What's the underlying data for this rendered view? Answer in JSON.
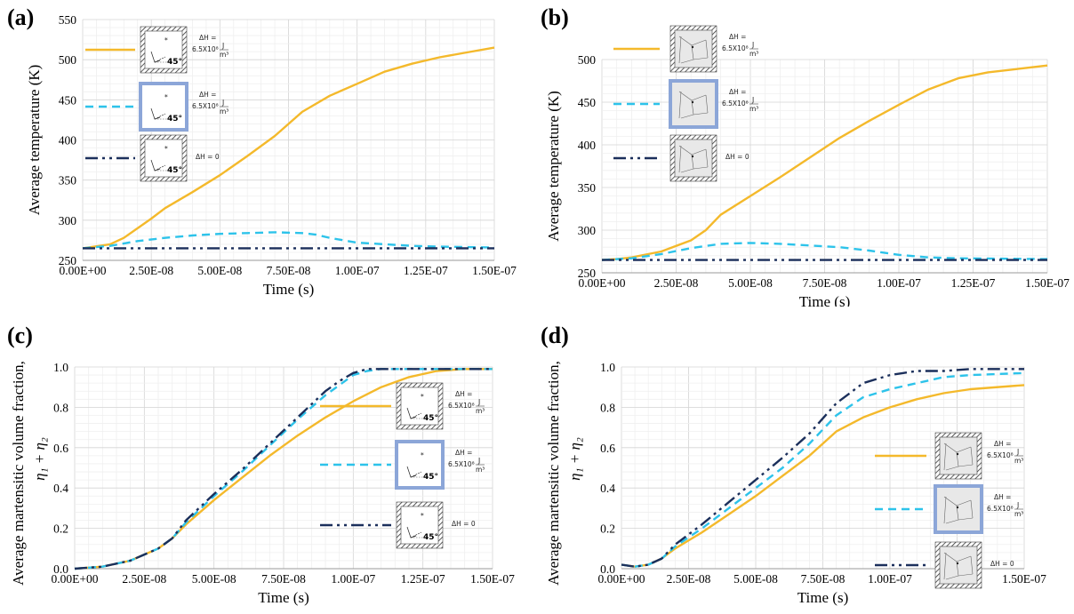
{
  "colors": {
    "yellow": "#F4B92B",
    "cyan": "#2DC3EA",
    "navy": "#1B2F5B",
    "grid": "#DDDDDD",
    "highlight_frame": "#8CA6D8",
    "hatch": "#333333"
  },
  "legend_labels": {
    "dh_prefix": "ΔH =",
    "dh_value": "6.5X10⁸",
    "dh_unit_num": "J",
    "dh_unit_den": "m³",
    "dh_zero": "ΔH = 0",
    "angle": "45°"
  },
  "icons": [
    "single-crystal-45deg-hatched-icon",
    "single-crystal-45deg-framed-icon",
    "polycrystal-hatched-icon",
    "polycrystal-framed-icon"
  ],
  "chart_data": [
    {
      "panel_label": "(a)",
      "type": "line",
      "xlabel": "Time (s)",
      "ylabel": "Average temperature (K)",
      "xlim": [
        0,
        1.5e-07
      ],
      "ylim": [
        250,
        550
      ],
      "xticks": [
        0,
        2.5e-08,
        5e-08,
        7.5e-08,
        1e-07,
        1.25e-07,
        1.5e-07
      ],
      "xtick_labels": [
        "0.00E+00",
        "2.50E-08",
        "5.00E-08",
        "7.50E-08",
        "1.00E-07",
        "1.25E-07",
        "1.50E-07"
      ],
      "yticks": [
        250,
        300,
        350,
        400,
        450,
        500,
        550
      ],
      "ytick_labels": [
        "250",
        "300",
        "350",
        "400",
        "450",
        "500",
        "550"
      ],
      "grid": true,
      "legend_position": "top-left",
      "series": [
        {
          "color_key": "yellow",
          "dash": "solid",
          "legend": {
            "icon": "single-crystal-45deg-hatched-icon",
            "text": "dh"
          },
          "x": [
            0,
            1e-08,
            1.5e-08,
            2e-08,
            2.5e-08,
            3e-08,
            4e-08,
            5e-08,
            6e-08,
            7e-08,
            8e-08,
            9e-08,
            1e-07,
            1.1e-07,
            1.2e-07,
            1.3e-07,
            1.4e-07,
            1.5e-07
          ],
          "y": [
            265,
            270,
            278,
            290,
            302,
            315,
            335,
            356,
            380,
            405,
            435,
            455,
            470,
            485,
            495,
            503,
            509,
            515
          ]
        },
        {
          "color_key": "cyan",
          "dash": "dashed",
          "legend": {
            "icon": "single-crystal-45deg-framed-icon",
            "text": "dh"
          },
          "x": [
            0,
            1e-08,
            2e-08,
            3e-08,
            4e-08,
            5e-08,
            6e-08,
            7e-08,
            8e-08,
            8.5e-08,
            9e-08,
            1e-07,
            1.1e-07,
            1.2e-07,
            1.3e-07,
            1.5e-07
          ],
          "y": [
            265,
            268,
            274,
            278,
            281,
            283,
            284,
            285,
            284,
            282,
            278,
            272,
            270,
            268,
            267,
            266
          ]
        },
        {
          "color_key": "navy",
          "dash": "dashdot",
          "legend": {
            "icon": "single-crystal-45deg-hatched-icon",
            "text": "zero"
          },
          "x": [
            0,
            1.5e-07
          ],
          "y": [
            265,
            265
          ]
        }
      ]
    },
    {
      "panel_label": "(b)",
      "type": "line",
      "xlabel": "Time (s)",
      "ylabel": "Average temperature (K)",
      "xlim": [
        0,
        1.5e-07
      ],
      "ylim": [
        250,
        500
      ],
      "xticks": [
        0,
        2.5e-08,
        5e-08,
        7.5e-08,
        1e-07,
        1.25e-07,
        1.5e-07
      ],
      "xtick_labels": [
        "0.00E+00",
        "2.50E-08",
        "5.00E-08",
        "7.50E-08",
        "1.00E-07",
        "1.25E-07",
        "1.50E-07"
      ],
      "yticks": [
        250,
        300,
        350,
        400,
        450,
        500
      ],
      "ytick_labels": [
        "250",
        "300",
        "350",
        "400",
        "450",
        "500"
      ],
      "grid": true,
      "legend_position": "top-left",
      "series": [
        {
          "color_key": "yellow",
          "dash": "solid",
          "legend": {
            "icon": "polycrystal-hatched-icon",
            "text": "dh"
          },
          "x": [
            0,
            5e-09,
            1e-08,
            2e-08,
            3e-08,
            3.5e-08,
            4e-08,
            5e-08,
            6e-08,
            7e-08,
            8e-08,
            9e-08,
            1e-07,
            1.1e-07,
            1.2e-07,
            1.3e-07,
            1.4e-07,
            1.5e-07
          ],
          "y": [
            265,
            266,
            268,
            275,
            288,
            300,
            318,
            340,
            362,
            385,
            408,
            428,
            447,
            465,
            478,
            485,
            489,
            493
          ]
        },
        {
          "color_key": "cyan",
          "dash": "dashed",
          "legend": {
            "icon": "polycrystal-framed-icon",
            "text": "dh"
          },
          "x": [
            0,
            1e-08,
            2e-08,
            3e-08,
            4e-08,
            5e-08,
            6e-08,
            7e-08,
            8e-08,
            9e-08,
            1e-07,
            1.1e-07,
            1.2e-07,
            1.5e-07
          ],
          "y": [
            265,
            267,
            272,
            279,
            284,
            285,
            284,
            282,
            280,
            276,
            271,
            268,
            267,
            266
          ]
        },
        {
          "color_key": "navy",
          "dash": "dashdot",
          "legend": {
            "icon": "polycrystal-hatched-icon",
            "text": "zero"
          },
          "x": [
            0,
            1.5e-07
          ],
          "y": [
            265,
            265
          ]
        }
      ]
    },
    {
      "panel_label": "(c)",
      "type": "line",
      "xlabel": "Time (s)",
      "ylabel": "Average martensitic volume fraction,",
      "ylabel2": "η₁ + η₂",
      "xlim": [
        0,
        1.5e-07
      ],
      "ylim": [
        0,
        1
      ],
      "xticks": [
        0,
        2.5e-08,
        5e-08,
        7.5e-08,
        1e-07,
        1.25e-07,
        1.5e-07
      ],
      "xtick_labels": [
        "0.00E+00",
        "2.50E-08",
        "5.00E-08",
        "7.50E-08",
        "1.00E-07",
        "1.25E-07",
        "1.50E-07"
      ],
      "yticks": [
        0,
        0.2,
        0.4,
        0.6,
        0.8,
        1.0
      ],
      "ytick_labels": [
        "0.0",
        "0.2",
        "0.4",
        "0.6",
        "0.8",
        "1.0"
      ],
      "grid": true,
      "legend_position": "right",
      "series": [
        {
          "color_key": "yellow",
          "dash": "solid",
          "legend": {
            "icon": "single-crystal-45deg-hatched-icon",
            "text": "dh"
          },
          "x": [
            0,
            1e-08,
            2e-08,
            3e-08,
            3.5e-08,
            4e-08,
            5e-08,
            6e-08,
            7e-08,
            8e-08,
            9e-08,
            1e-07,
            1.1e-07,
            1.2e-07,
            1.3e-07,
            1.4e-07,
            1.5e-07
          ],
          "y": [
            0,
            0.01,
            0.04,
            0.1,
            0.15,
            0.22,
            0.34,
            0.45,
            0.56,
            0.66,
            0.75,
            0.83,
            0.9,
            0.95,
            0.98,
            0.99,
            0.99
          ]
        },
        {
          "color_key": "cyan",
          "dash": "dashed",
          "legend": {
            "icon": "single-crystal-45deg-framed-icon",
            "text": "dh"
          },
          "x": [
            0,
            1e-08,
            2e-08,
            3e-08,
            3.5e-08,
            4e-08,
            5e-08,
            6e-08,
            7e-08,
            8e-08,
            9e-08,
            9.5e-08,
            1e-07,
            1.05e-07,
            1.1e-07,
            1.2e-07,
            1.5e-07
          ],
          "y": [
            0,
            0.01,
            0.04,
            0.1,
            0.15,
            0.23,
            0.36,
            0.48,
            0.61,
            0.74,
            0.86,
            0.91,
            0.96,
            0.98,
            0.99,
            0.99,
            0.99
          ]
        },
        {
          "color_key": "navy",
          "dash": "dashdot",
          "legend": {
            "icon": "single-crystal-45deg-hatched-icon",
            "text": "zero"
          },
          "x": [
            0,
            1e-08,
            2e-08,
            3e-08,
            3.5e-08,
            4e-08,
            5e-08,
            6e-08,
            7e-08,
            8e-08,
            9e-08,
            9.5e-08,
            1e-07,
            1.05e-07,
            1.1e-07,
            1.2e-07,
            1.5e-07
          ],
          "y": [
            0,
            0.01,
            0.04,
            0.1,
            0.15,
            0.24,
            0.37,
            0.49,
            0.62,
            0.75,
            0.88,
            0.93,
            0.97,
            0.99,
            0.99,
            0.99,
            0.99
          ]
        }
      ]
    },
    {
      "panel_label": "(d)",
      "type": "line",
      "xlabel": "Time (s)",
      "ylabel": "Average martensitic volume fraction,",
      "ylabel2": "η₁ + η₂",
      "xlim": [
        0,
        1.5e-07
      ],
      "ylim": [
        0,
        1
      ],
      "xticks": [
        0,
        2.5e-08,
        5e-08,
        7.5e-08,
        1e-07,
        1.25e-07,
        1.5e-07
      ],
      "xtick_labels": [
        "0.00E+00",
        "2.50E-08",
        "5.00E-08",
        "7.50E-08",
        "1.00E-07",
        "1.25E-07",
        "1.50E-07"
      ],
      "yticks": [
        0,
        0.2,
        0.4,
        0.6,
        0.8,
        1.0
      ],
      "ytick_labels": [
        "0.0",
        "0.2",
        "0.4",
        "0.6",
        "0.8",
        "1.0"
      ],
      "grid": true,
      "legend_position": "right",
      "series": [
        {
          "color_key": "yellow",
          "dash": "solid",
          "legend": {
            "icon": "polycrystal-hatched-icon",
            "text": "dh"
          },
          "x": [
            0,
            5e-09,
            1e-08,
            1.5e-08,
            2e-08,
            3e-08,
            4e-08,
            5e-08,
            6e-08,
            7e-08,
            8e-08,
            9e-08,
            1e-07,
            1.1e-07,
            1.2e-07,
            1.3e-07,
            1.5e-07
          ],
          "y": [
            0.02,
            0.01,
            0.02,
            0.05,
            0.1,
            0.18,
            0.27,
            0.36,
            0.46,
            0.56,
            0.68,
            0.75,
            0.8,
            0.84,
            0.87,
            0.89,
            0.91
          ]
        },
        {
          "color_key": "cyan",
          "dash": "dashed",
          "legend": {
            "icon": "polycrystal-framed-icon",
            "text": "dh"
          },
          "x": [
            0,
            5e-09,
            1e-08,
            1.5e-08,
            2e-08,
            3e-08,
            4e-08,
            5e-08,
            6e-08,
            7e-08,
            8e-08,
            9e-08,
            1e-07,
            1.1e-07,
            1.2e-07,
            1.3e-07,
            1.5e-07
          ],
          "y": [
            0.02,
            0.01,
            0.02,
            0.05,
            0.11,
            0.2,
            0.3,
            0.4,
            0.5,
            0.62,
            0.76,
            0.85,
            0.89,
            0.92,
            0.95,
            0.96,
            0.97
          ]
        },
        {
          "color_key": "navy",
          "dash": "dashdot",
          "legend": {
            "icon": "polycrystal-hatched-icon",
            "text": "zero"
          },
          "x": [
            0,
            5e-09,
            1e-08,
            1.5e-08,
            2e-08,
            3e-08,
            4e-08,
            5e-08,
            6e-08,
            7e-08,
            8e-08,
            9e-08,
            1e-07,
            1.1e-07,
            1.2e-07,
            1.3e-07,
            1.5e-07
          ],
          "y": [
            0.02,
            0.01,
            0.02,
            0.05,
            0.12,
            0.22,
            0.33,
            0.44,
            0.55,
            0.67,
            0.82,
            0.92,
            0.96,
            0.98,
            0.98,
            0.99,
            0.99
          ]
        }
      ]
    }
  ]
}
